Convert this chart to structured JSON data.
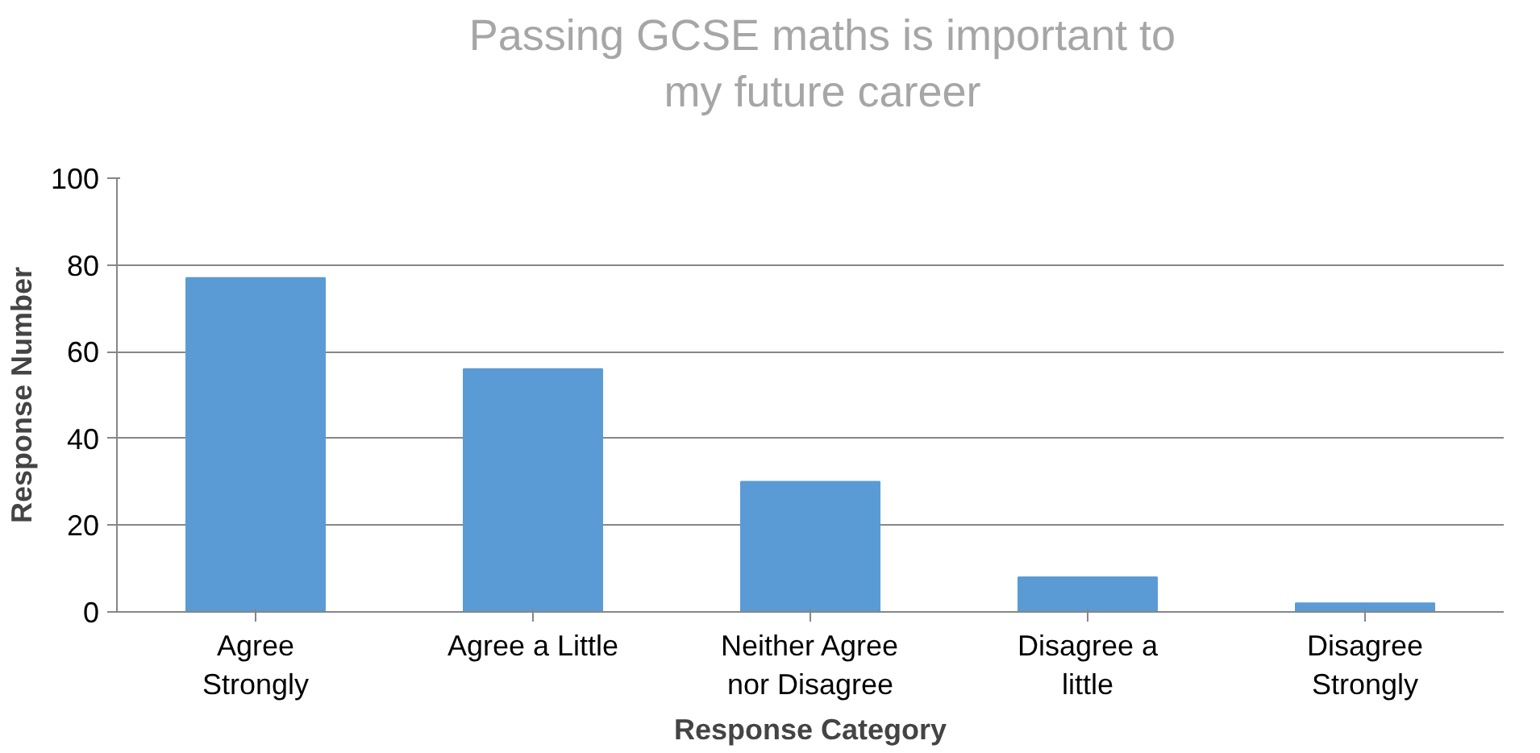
{
  "chart_data": {
    "type": "bar",
    "title": "Passing GCSE maths is important to\nmy future career",
    "xlabel": "Response Category",
    "ylabel": "Response Number",
    "categories": [
      "Agree\nStrongly",
      "Agree a Little",
      "Neither Agree\nnor Disagree",
      "Disagree a\nlittle",
      "Disagree\nStrongly"
    ],
    "values": [
      77,
      56,
      30,
      8,
      2
    ],
    "color": "#5b9bd5",
    "ylim": [
      0,
      100
    ],
    "yticks": [
      0,
      20,
      40,
      60,
      80,
      100
    ],
    "grid": "y"
  }
}
